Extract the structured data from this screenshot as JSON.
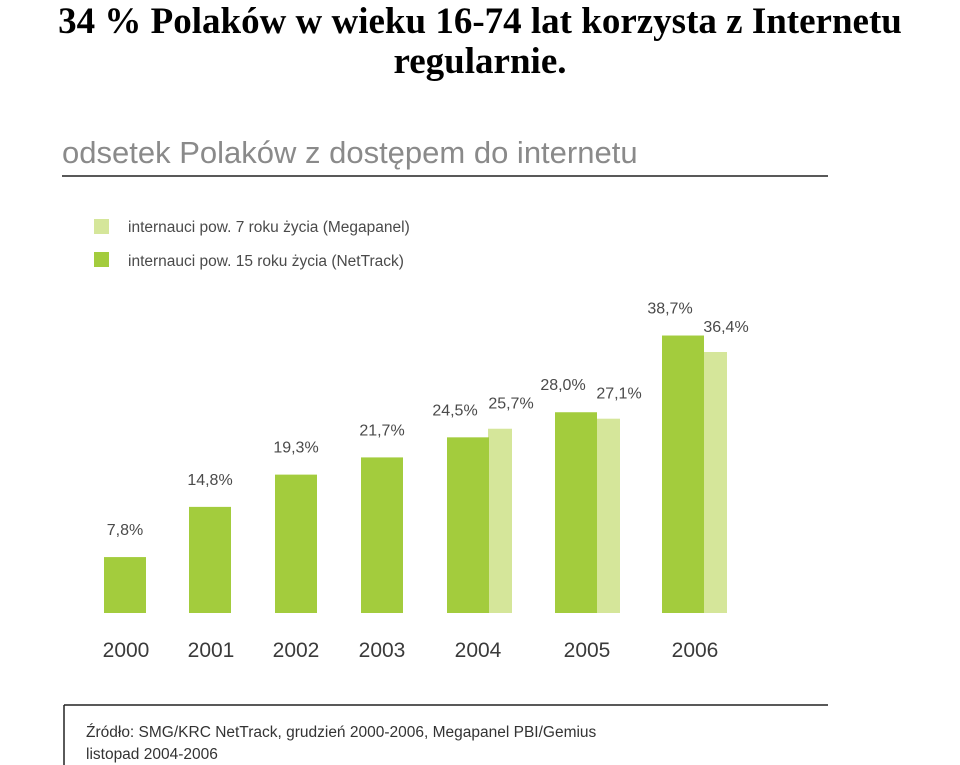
{
  "slide": {
    "title_line1": "34 % Polaków w wieku 16-74 lat korzysta z Internetu",
    "title_line2": "regularnie."
  },
  "chart_data": {
    "type": "bar",
    "title": "odsetek Polaków z dostępem do internetu",
    "categories": [
      "2000",
      "2001",
      "2002",
      "2003",
      "2004",
      "2005",
      "2006"
    ],
    "series": [
      {
        "name": "internauci pow. 15 roku życia (NetTrack)",
        "color": "#a3cc3d",
        "values": [
          7.8,
          14.8,
          19.3,
          21.7,
          24.5,
          28.0,
          38.7
        ],
        "labels": [
          "7,8%",
          "14,8%",
          "19,3%",
          "21,7%",
          "24,5%",
          "28,0%",
          "38,7%"
        ]
      },
      {
        "name": "internauci pow. 7 roku życia (Megapanel)",
        "color": "#d5e69a",
        "values": [
          null,
          null,
          null,
          null,
          25.7,
          27.1,
          36.4
        ],
        "labels": [
          "",
          "",
          "",
          "",
          "25,7%",
          "27,1%",
          "36,4%"
        ]
      }
    ],
    "legend_order": [
      1,
      0
    ],
    "legend_position": "top-left",
    "grid": false,
    "source_line1": "Źródło: SMG/KRC NetTrack, grudzień 2000-2006, Megapanel PBI/Gemius",
    "source_line2": "listopad 2004-2006"
  }
}
